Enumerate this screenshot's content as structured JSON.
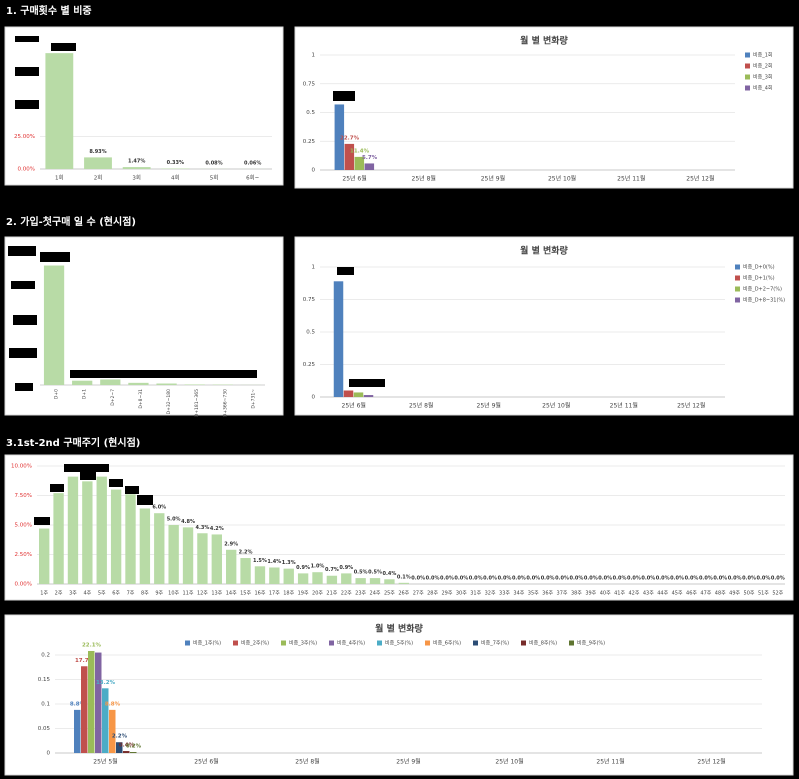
{
  "sections": [
    "1. 구매횟수 별 비중",
    "2. 가입-첫구매 일 수 (현시점)",
    "3.1st-2nd 구매주기 (현시점)"
  ],
  "chart_data": [
    {
      "type": "bar",
      "categories": [
        "1회",
        "2회",
        "3회",
        "4회",
        "5회",
        "6회~"
      ],
      "values": [
        89.13,
        8.93,
        1.47,
        0.33,
        0.08,
        0.06
      ],
      "value_labels": [
        null,
        "8.93%",
        "1.47%",
        "0.33%",
        "0.08%",
        "0.06%"
      ],
      "color": "#b8dba6",
      "tick_color": "#e03030",
      "ylim": [
        0,
        100
      ],
      "yticks": [
        {
          "value": 0,
          "label": "0.00%"
        },
        {
          "value": 25,
          "label": "25.00%"
        }
      ],
      "grid": true
    },
    {
      "type": "grouped_bar",
      "title": "월 별 변화량",
      "categories": [
        "25년 6월",
        "25년 8월",
        "25년 9월",
        "25년 10월",
        "25년 11월",
        "25년 12월"
      ],
      "series": [
        {
          "name": "비중_1회",
          "color": "#4f81bd",
          "values": [
            0.57,
            null,
            null,
            null,
            null,
            null
          ],
          "value_labels": [
            null,
            null,
            null,
            null,
            null,
            null
          ]
        },
        {
          "name": "비중_2회",
          "color": "#c0504d",
          "values": [
            0.227,
            null,
            null,
            null,
            null,
            null
          ],
          "value_labels": [
            "22.7%",
            null,
            null,
            null,
            null,
            null
          ]
        },
        {
          "name": "비중_3회",
          "color": "#9bbb59",
          "values": [
            0.114,
            null,
            null,
            null,
            null,
            null
          ],
          "value_labels": [
            "11.4%",
            null,
            null,
            null,
            null,
            null
          ]
        },
        {
          "name": "비중_4회",
          "color": "#8064a2",
          "values": [
            0.057,
            null,
            null,
            null,
            null,
            null
          ],
          "value_labels": [
            "5.7%",
            null,
            null,
            null,
            null,
            null
          ]
        }
      ],
      "ylim": [
        0,
        1
      ],
      "yticks": [
        0,
        0.25,
        0.5,
        0.75,
        1
      ],
      "grid": true,
      "legend": "right"
    },
    {
      "type": "bar",
      "categories": [
        "D+0",
        "D+1",
        "D+2~7",
        "D+8~31",
        "D+32~180",
        "D+181~365",
        "D+366~730",
        "D+731~"
      ],
      "values": [
        88.5,
        3.2,
        4.1,
        1.6,
        1.1,
        0.4,
        0.3,
        0.08
      ],
      "color": "#b8dba6",
      "ylim": [
        0,
        100
      ],
      "yticks": [],
      "grid": true
    },
    {
      "type": "grouped_bar",
      "title": "월 별 변화량",
      "categories": [
        "25년 6월",
        "25년 8월",
        "25년 9월",
        "25년 10월",
        "25년 11월",
        "25년 12월"
      ],
      "series": [
        {
          "name": "비중_D+0(%)",
          "color": "#4f81bd",
          "values": [
            0.89,
            null,
            null,
            null,
            null,
            null
          ]
        },
        {
          "name": "비중_D+1(%)",
          "color": "#c0504d",
          "values": [
            0.05,
            null,
            null,
            null,
            null,
            null
          ]
        },
        {
          "name": "비중_D+2~7(%)",
          "color": "#9bbb59",
          "values": [
            0.035,
            null,
            null,
            null,
            null,
            null
          ]
        },
        {
          "name": "비중_D+8~31(%)",
          "color": "#8064a2",
          "values": [
            0.015,
            null,
            null,
            null,
            null,
            null
          ]
        }
      ],
      "ylim": [
        0,
        1
      ],
      "yticks": [
        0,
        0.25,
        0.5,
        0.75,
        1
      ],
      "grid": true,
      "legend": "right"
    },
    {
      "type": "bar",
      "categories": [
        "1주",
        "2주",
        "3주",
        "4주",
        "5주",
        "6주",
        "7주",
        "8주",
        "9주",
        "10주",
        "11주",
        "12주",
        "13주",
        "14주",
        "15주",
        "16주",
        "17주",
        "18주",
        "19주",
        "20주",
        "21주",
        "22주",
        "23주",
        "24주",
        "25주",
        "26주",
        "27주",
        "28주",
        "29주",
        "30주",
        "31주",
        "32주",
        "33주",
        "34주",
        "35주",
        "36주",
        "37주",
        "38주",
        "39주",
        "40주",
        "41주",
        "42주",
        "43주",
        "44주",
        "45주",
        "46주",
        "47주",
        "48주",
        "49주",
        "50주",
        "51주",
        "52주"
      ],
      "values": [
        4.7,
        7.7,
        9.1,
        8.7,
        9.1,
        8.0,
        7.6,
        6.4,
        6.0,
        5.0,
        4.8,
        4.3,
        4.2,
        2.9,
        2.2,
        1.5,
        1.4,
        1.3,
        0.9,
        1.0,
        0.7,
        0.9,
        0.5,
        0.5,
        0.4,
        0.1,
        0,
        0,
        0,
        0,
        0,
        0,
        0,
        0,
        0,
        0,
        0,
        0,
        0,
        0,
        0,
        0,
        0,
        0,
        0,
        0,
        0,
        0,
        0,
        0,
        0,
        0
      ],
      "value_labels": [
        null,
        null,
        null,
        null,
        null,
        null,
        null,
        null,
        "6.0%",
        "5.0%",
        "4.8%",
        "4.3%",
        "4.2%",
        "2.9%",
        "2.2%",
        "1.5%",
        "1.4%",
        "1.3%",
        "0.9%",
        "1.0%",
        "0.7%",
        "0.9%",
        "0.5%",
        "0.5%",
        "0.4%",
        "0.1%",
        "0.0%",
        "0.0%",
        "0.0%",
        "0.0%",
        "0.0%",
        "0.0%",
        "0.0%",
        "0.0%",
        "0.0%",
        "0.0%",
        "0.0%",
        "0.0%",
        "0.0%",
        "0.0%",
        "0.0%",
        "0.0%",
        "0.0%",
        "0.0%",
        "0.0%",
        "0.0%",
        "0.0%",
        "0.0%",
        "0.0%",
        "0.0%",
        "0.0%",
        "0.0%"
      ],
      "color": "#b8dba6",
      "tick_color": "#e03030",
      "ylim": [
        0,
        10
      ],
      "yticks": [
        {
          "value": 0,
          "label": "0.00%"
        },
        {
          "value": 2.5,
          "label": "2.50%"
        },
        {
          "value": 5,
          "label": "5.00%"
        },
        {
          "value": 7.5,
          "label": "7.50%"
        },
        {
          "value": 10,
          "label": "10.00%"
        }
      ],
      "grid": true
    },
    {
      "type": "grouped_bar",
      "title": "월 별 변화량",
      "categories": [
        "25년 5월",
        "25년 6월",
        "25년 8월",
        "25년 9월",
        "25년 10월",
        "25년 11월",
        "25년 12월"
      ],
      "series": [
        {
          "name": "비중_1주(%)",
          "color": "#4f81bd",
          "values": [
            0.088,
            null,
            null,
            null,
            null,
            null,
            null
          ],
          "value_labels": [
            "8.8%",
            null,
            null,
            null,
            null,
            null,
            null
          ]
        },
        {
          "name": "비중_2주(%)",
          "color": "#c0504d",
          "values": [
            0.177,
            null,
            null,
            null,
            null,
            null,
            null
          ],
          "value_labels": [
            "17.7%",
            null,
            null,
            null,
            null,
            null,
            null
          ]
        },
        {
          "name": "비중_3주(%)",
          "color": "#9bbb59",
          "values": [
            0.221,
            null,
            null,
            null,
            null,
            null,
            null
          ],
          "value_labels": [
            "22.1%",
            null,
            null,
            null,
            null,
            null,
            null
          ]
        },
        {
          "name": "비중_4주(%)",
          "color": "#8064a2",
          "values": [
            0.205,
            null,
            null,
            null,
            null,
            null,
            null
          ]
        },
        {
          "name": "비중_5주(%)",
          "color": "#4bacc6",
          "values": [
            0.132,
            null,
            null,
            null,
            null,
            null,
            null
          ],
          "value_labels": [
            "13.2%",
            null,
            null,
            null,
            null,
            null,
            null
          ]
        },
        {
          "name": "비중_6주(%)",
          "color": "#f79646",
          "values": [
            0.088,
            null,
            null,
            null,
            null,
            null,
            null
          ],
          "value_labels": [
            "8.8%",
            null,
            null,
            null,
            null,
            null,
            null
          ]
        },
        {
          "name": "비중_7주(%)",
          "color": "#2c4d75",
          "values": [
            0.022,
            null,
            null,
            null,
            null,
            null,
            null
          ],
          "value_labels": [
            "2.2%",
            null,
            null,
            null,
            null,
            null,
            null
          ]
        },
        {
          "name": "비중_8주(%)",
          "color": "#772c2a",
          "values": [
            0.004,
            null,
            null,
            null,
            null,
            null,
            null
          ],
          "value_labels": [
            "0.4%",
            null,
            null,
            null,
            null,
            null,
            null
          ]
        },
        {
          "name": "비중_9주(%)",
          "color": "#5f7530",
          "values": [
            0.002,
            null,
            null,
            null,
            null,
            null,
            null
          ],
          "value_labels": [
            "0.2%",
            null,
            null,
            null,
            null,
            null,
            null
          ]
        }
      ],
      "ylim": [
        0,
        0.2
      ],
      "yticks": [
        0,
        0.05,
        0.1,
        0.15,
        0.2
      ],
      "grid": true,
      "legend": "top"
    }
  ]
}
